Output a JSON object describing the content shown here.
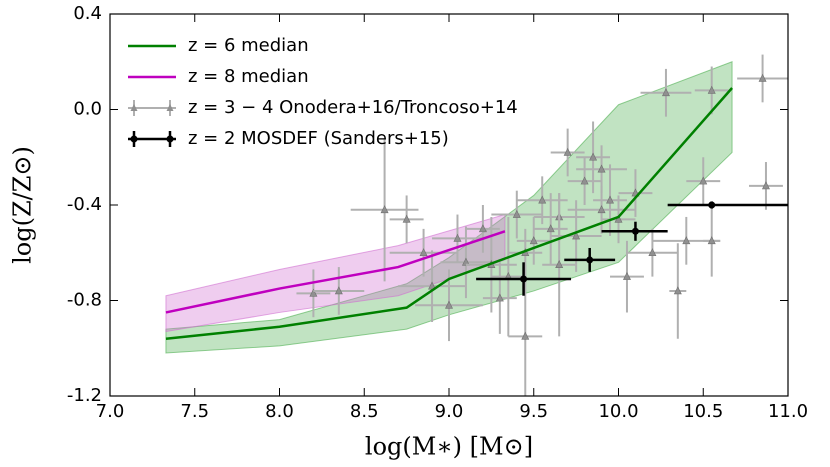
{
  "chart_data": {
    "type": "scatter",
    "xlabel": "log(M∗) [M⊙]",
    "ylabel": "log(Z/Z⊙)",
    "xlim": [
      7.0,
      11.0
    ],
    "ylim": [
      -1.2,
      0.4
    ],
    "xticks": [
      {
        "value": 7.0,
        "label": "7.0"
      },
      7.5,
      {
        "value": 8.0,
        "label": "8.0"
      },
      8.5,
      {
        "value": 9.0,
        "label": "9.0"
      },
      9.5,
      {
        "value": 10.0,
        "label": "10.0"
      },
      10.5,
      {
        "value": 11.0,
        "label": "11.0"
      }
    ],
    "yticks": [
      -1.2,
      -0.8,
      -0.4,
      {
        "value": 0,
        "label": "0.0"
      },
      0.4
    ],
    "legend": "upper left",
    "series": [
      {
        "name": "z = 6 median",
        "kind": "line",
        "color": "#008000",
        "band_color": "#4caf50",
        "x": [
          7.33,
          8.0,
          8.75,
          9.0,
          9.5,
          10.0,
          10.67
        ],
        "values": [
          -0.96,
          -0.91,
          -0.83,
          -0.71,
          -0.58,
          -0.45,
          0.09
        ],
        "band_low": [
          -1.02,
          -0.99,
          -0.92,
          -0.86,
          -0.76,
          -0.64,
          -0.18
        ],
        "band_high": [
          -0.92,
          -0.88,
          -0.73,
          -0.62,
          -0.36,
          0.02,
          0.2
        ]
      },
      {
        "name": "z = 8 median",
        "kind": "line",
        "color": "#bf00bf",
        "band_color": "#d070d0",
        "x": [
          7.33,
          8.0,
          8.7,
          9.33
        ],
        "values": [
          -0.85,
          -0.75,
          -0.66,
          -0.51
        ],
        "band_low": [
          -0.93,
          -0.85,
          -0.78,
          -0.63
        ],
        "band_high": [
          -0.78,
          -0.67,
          -0.57,
          -0.44
        ]
      },
      {
        "name": "z = 3 − 4 Onodera+16/Troncoso+14",
        "kind": "errorbar",
        "color": "#b0b0b0",
        "marker": "triangle",
        "x": [
          8.62,
          8.75,
          8.2,
          8.35,
          8.85,
          8.9,
          9.05,
          9.1,
          9.2,
          9.25,
          9.3,
          9.35,
          9.4,
          9.45,
          9.5,
          9.55,
          9.6,
          9.65,
          9.7,
          9.75,
          9.8,
          9.85,
          9.9,
          9.95,
          10.0,
          10.05,
          10.1,
          10.2,
          10.28,
          10.35,
          10.4,
          10.5,
          10.55,
          10.85,
          10.87,
          9.0,
          9.45,
          9.65,
          10.55,
          9.9
        ],
        "values": [
          -0.42,
          -0.46,
          -0.77,
          -0.76,
          -0.6,
          -0.74,
          -0.54,
          -0.64,
          -0.5,
          -0.65,
          -0.79,
          -0.7,
          -0.44,
          -0.6,
          -0.55,
          -0.38,
          -0.5,
          -0.45,
          -0.18,
          -0.53,
          -0.3,
          -0.2,
          -0.25,
          -0.38,
          -0.46,
          -0.7,
          -0.35,
          -0.6,
          0.07,
          -0.76,
          -0.55,
          -0.3,
          0.08,
          0.13,
          -0.32,
          -0.82,
          -0.95,
          -0.65,
          -0.55,
          -0.42
        ],
        "xerr": [
          0.2,
          0.1,
          0.1,
          0.15,
          0.2,
          0.2,
          0.15,
          0.15,
          0.1,
          0.15,
          0.1,
          0.1,
          0.15,
          0.1,
          0.1,
          0.15,
          0.1,
          0.15,
          0.1,
          0.15,
          0.1,
          0.1,
          0.15,
          0.1,
          0.1,
          0.1,
          0.1,
          0.15,
          0.15,
          0.05,
          0.2,
          0.1,
          0.1,
          0.15,
          0.1,
          0.2,
          0.1,
          0.1,
          0.05,
          0.2
        ],
        "yerr": [
          0.3,
          0.1,
          0.1,
          0.1,
          0.1,
          0.15,
          0.1,
          0.15,
          0.1,
          0.2,
          0.15,
          0.25,
          0.1,
          0.1,
          0.1,
          0.1,
          0.15,
          0.1,
          0.1,
          0.15,
          0.1,
          0.15,
          0.1,
          0.15,
          0.1,
          0.15,
          0.1,
          0.1,
          0.1,
          0.2,
          0.1,
          0.1,
          0.1,
          0.1,
          0.1,
          0.15,
          0.3,
          0.3,
          0.15,
          0.1
        ]
      },
      {
        "name": "z = 2 MOSDEF (Sanders+15)",
        "kind": "errorbar",
        "color": "#000000",
        "marker": "circle",
        "x": [
          9.44,
          9.83,
          10.1,
          10.55
        ],
        "values": [
          -0.71,
          -0.63,
          -0.51,
          -0.4
        ],
        "xerr_minus": [
          0.28,
          0.15,
          0.2,
          0.26
        ],
        "xerr_plus": [
          0.28,
          0.15,
          0.19,
          0.45
        ],
        "yerr": [
          0.07,
          0.05,
          0.04,
          0.015
        ]
      }
    ]
  }
}
